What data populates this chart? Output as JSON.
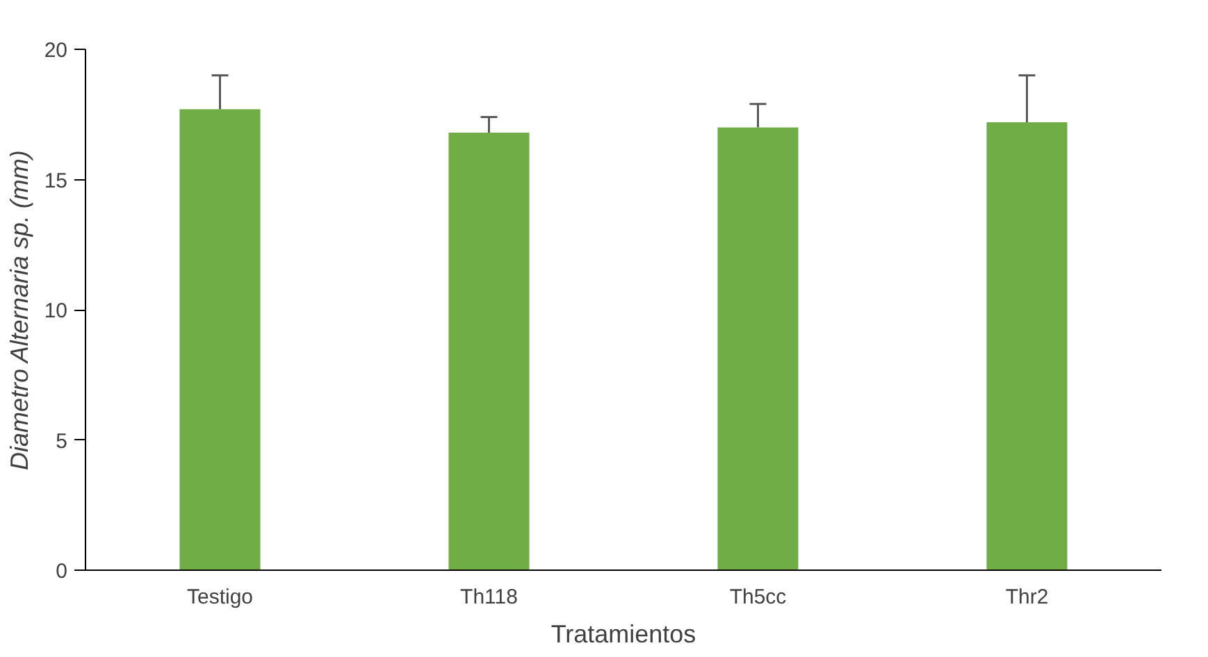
{
  "chart_data": {
    "type": "bar",
    "xlabel": "Tratamientos",
    "ylabel": "Diametro Alternaria sp. (mm)",
    "categories": [
      "Testigo",
      "Th118",
      "Th5cc",
      "Thr2"
    ],
    "values": [
      17.7,
      16.8,
      17.0,
      17.2
    ],
    "errors": [
      [
        17.7,
        19.0
      ],
      [
        16.8,
        17.4
      ],
      [
        17.0,
        17.9
      ],
      [
        17.2,
        19.0
      ]
    ],
    "color": "#70ad47",
    "ylim": [
      0,
      20
    ],
    "yticks": [
      0,
      5,
      10,
      15,
      20
    ],
    "grid": false
  }
}
